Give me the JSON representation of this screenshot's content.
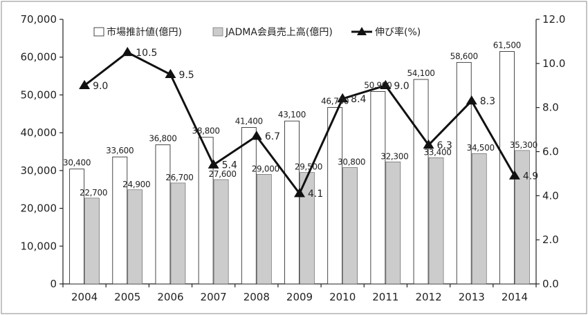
{
  "chart_data": {
    "type": "bar",
    "categories": [
      "2004",
      "2005",
      "2006",
      "2007",
      "2008",
      "2009",
      "2010",
      "2011",
      "2012",
      "2013",
      "2014"
    ],
    "series": [
      {
        "name": "市場推計値(億円)",
        "kind": "bar",
        "axis": "left",
        "color": "#ffffff",
        "values": [
          30400,
          33600,
          36800,
          38800,
          41400,
          43100,
          46700,
          50900,
          54100,
          58600,
          61500
        ],
        "labels": [
          "30,400",
          "33,600",
          "36,800",
          "38,800",
          "41,400",
          "43,100",
          "46,700",
          "50,900",
          "54,100",
          "58,600",
          "61,500"
        ]
      },
      {
        "name": "JADMA会員売上高(億円)",
        "kind": "bar",
        "axis": "left",
        "color": "#cccccc",
        "values": [
          22700,
          24900,
          26700,
          27600,
          29000,
          29500,
          30800,
          32300,
          33400,
          34500,
          35300
        ],
        "labels": [
          "22,700",
          "24,900",
          "26,700",
          "27,600",
          "29,000",
          "29,500",
          "30,800",
          "32,300",
          "33,400",
          "34,500",
          "35,300"
        ]
      },
      {
        "name": "伸び率(%)",
        "kind": "line",
        "axis": "right",
        "color": "#111111",
        "values": [
          9.0,
          10.5,
          9.5,
          5.4,
          6.7,
          4.1,
          8.4,
          9.0,
          6.3,
          8.3,
          4.9
        ],
        "labels": [
          "9.0",
          "10.5",
          "9.5",
          "5.4",
          "6.7",
          "4.1",
          "8.4",
          "9.0",
          "6.3",
          "8.3",
          "4.9"
        ]
      }
    ],
    "y_left": {
      "lim": [
        0,
        70000
      ],
      "ticks": [
        0,
        10000,
        20000,
        30000,
        40000,
        50000,
        60000,
        70000
      ],
      "tick_labels": [
        "0",
        "10,000",
        "20,000",
        "30,000",
        "40,000",
        "50,000",
        "60,000",
        "70,000"
      ]
    },
    "y_right": {
      "lim": [
        0,
        12
      ],
      "ticks": [
        0,
        2,
        4,
        6,
        8,
        10,
        12
      ],
      "tick_labels": [
        "0.0",
        "2.0",
        "4.0",
        "6.0",
        "8.0",
        "10.0",
        "12.0"
      ]
    },
    "title": "",
    "xlabel": "",
    "ylabel": "",
    "grid": false,
    "legend_position": "top"
  }
}
